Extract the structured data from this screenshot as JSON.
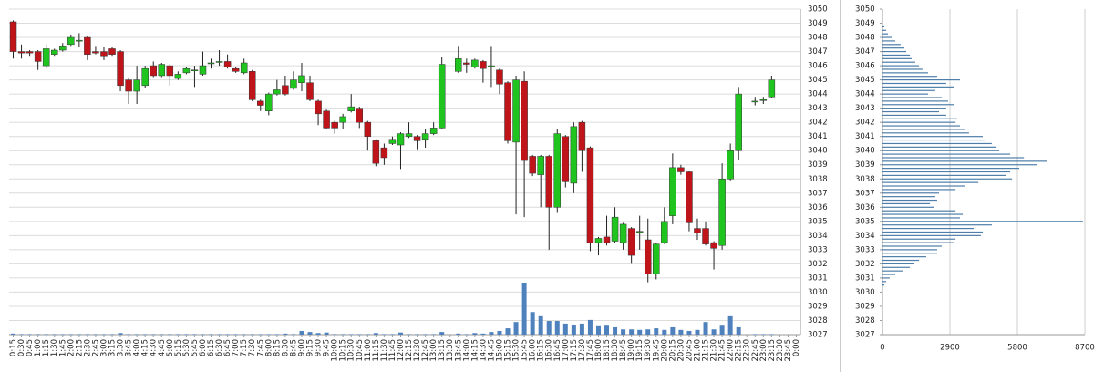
{
  "chart_data": [
    {
      "type": "candlestick",
      "categories": [
        "0:15",
        "0:30",
        "0:45",
        "1:00",
        "1:15",
        "1:30",
        "1:45",
        "2:00",
        "2:15",
        "2:30",
        "2:45",
        "3:00",
        "3:15",
        "3:30",
        "3:45",
        "4:00",
        "4:15",
        "4:30",
        "4:45",
        "5:00",
        "5:15",
        "5:30",
        "5:45",
        "6:00",
        "6:15",
        "6:30",
        "6:45",
        "7:00",
        "7:15",
        "7:30",
        "7:45",
        "8:00",
        "8:15",
        "8:30",
        "8:45",
        "9:00",
        "9:15",
        "9:30",
        "9:45",
        "10:00",
        "10:15",
        "10:30",
        "10:45",
        "11:00",
        "11:15",
        "11:30",
        "11:45",
        "12:00",
        "12:15",
        "12:30",
        "12:45",
        "13:00",
        "13:15",
        "13:30",
        "13:45",
        "14:00",
        "14:15",
        "14:30",
        "14:45",
        "15:00",
        "15:15",
        "15:30",
        "15:45",
        "16:00",
        "16:15",
        "16:30",
        "16:45",
        "17:00",
        "17:15",
        "17:30",
        "17:45",
        "18:00",
        "18:15",
        "18:30",
        "18:45",
        "19:00",
        "19:15",
        "19:30",
        "19:45",
        "20:00",
        "20:15",
        "20:30",
        "20:45",
        "21:00",
        "21:15",
        "21:30",
        "21:45",
        "22:00",
        "22:15",
        "22:30",
        "22:45",
        "23:00",
        "23:15",
        "23:30",
        "23:45",
        "0:00"
      ],
      "open": [
        3049.1,
        3047,
        3047,
        3047,
        3046,
        3046.8,
        3047.1,
        3047.5,
        3047.8,
        3048,
        3047,
        3047,
        3047.2,
        3047,
        3045,
        3044.2,
        3044.6,
        3046,
        3045.3,
        3046,
        3045.1,
        3045.5,
        3045.7,
        3045.4,
        3046.2,
        3046.3,
        3046.3,
        3045.8,
        3045.5,
        3045.6,
        3043.5,
        3042.8,
        3044,
        3044.6,
        3044.4,
        3044.8,
        3044.8,
        3043.5,
        3042.8,
        3042,
        3042,
        3042.8,
        3043,
        3042,
        3040.7,
        3040.2,
        3040.5,
        3040.4,
        3041,
        3041,
        3040.8,
        3041.2,
        3041.6,
        null,
        3045.6,
        3046.2,
        3045.9,
        3046.3,
        3046,
        3045.7,
        3044.8,
        3040.6,
        3044.9,
        3039.6,
        3038.3,
        3039.6,
        3036,
        3041,
        3037.7,
        3042,
        3040.2,
        3033.5,
        3033.9,
        3033.6,
        3033.5,
        3034.5,
        3034.3,
        3033.7,
        3031.3,
        3033.5,
        3035.4,
        3038.8,
        3038.5,
        3034.5,
        3034.5,
        3033.5,
        3033.3,
        3038,
        3040,
        null,
        3043.5,
        3043.6,
        3043.8,
        null,
        null,
        null
      ],
      "high": [
        3049.2,
        3047.5,
        3047.1,
        3047.1,
        3047.5,
        3047.2,
        3047.6,
        3048.2,
        3048.3,
        3048.1,
        3047.4,
        3047.3,
        3047.3,
        3047.1,
        3045.1,
        3046,
        3046,
        3046.3,
        3046.2,
        3046.1,
        3045.6,
        3045.9,
        3046,
        3047,
        3046.5,
        3047.1,
        3046.8,
        3045.9,
        3046.5,
        3045.7,
        3043.6,
        3044.1,
        3045,
        3045.3,
        3045.6,
        3046.2,
        3045.3,
        3043.6,
        3042.9,
        3042.1,
        3042.6,
        3044,
        3043.1,
        3042.1,
        3040.8,
        3040.5,
        3041,
        3041.3,
        3042,
        3041.1,
        3041.5,
        3042,
        3046.6,
        null,
        3047.4,
        3046.5,
        3046.5,
        3046.4,
        3047.4,
        3045.8,
        3044.9,
        3045.3,
        3045.6,
        3039.7,
        3039.7,
        3039.7,
        3041.5,
        3041.1,
        3042,
        3042.1,
        3040.3,
        3033.9,
        3035.4,
        3036,
        3034.9,
        3034.6,
        3035.4,
        3035.2,
        3033.5,
        3036,
        3039.8,
        3039,
        3038.6,
        3035.2,
        3035,
        3033.6,
        3039.1,
        3040.5,
        3044.5,
        null,
        3043.8,
        3043.8,
        3045.3,
        null,
        null,
        null
      ],
      "low": [
        3046.5,
        3046.5,
        3046.7,
        3045.7,
        3045.8,
        3046.7,
        3047,
        3047.4,
        3047.3,
        3046.4,
        3046.8,
        3046.4,
        3046.7,
        3044.2,
        3043.3,
        3043.3,
        3044.4,
        3045.2,
        3045.2,
        3044.6,
        3045,
        3045.4,
        3044.5,
        3045.3,
        3045.8,
        3046,
        3045.8,
        3045.5,
        3045.4,
        3043.5,
        3042.8,
        3042.5,
        3043.9,
        3043.9,
        3044.3,
        3044.2,
        3043.5,
        3041.8,
        3041.5,
        3041.2,
        3041.5,
        3042.7,
        3041.6,
        3040,
        3038.9,
        3039,
        3040.4,
        3038.7,
        3040.9,
        3040.1,
        3040.2,
        3041.1,
        3041.5,
        null,
        3045.5,
        3045.5,
        3045.8,
        3044.8,
        3044.5,
        3044,
        3040.5,
        3035.5,
        3035.3,
        3038.2,
        3036,
        3033,
        3035.6,
        3037.4,
        3037,
        3038.5,
        3032.9,
        3032.6,
        3033.3,
        3033.5,
        3033,
        3032,
        3033,
        3030.7,
        3030.9,
        3033.4,
        3034.8,
        3038.3,
        3034.3,
        3033.7,
        3033.3,
        3031.6,
        3033,
        3037.9,
        3039.3,
        null,
        3043.2,
        3043.3,
        3043.7,
        null,
        null,
        null
      ],
      "close": [
        3047,
        3046.9,
        3046.9,
        3046.3,
        3047.2,
        3047.1,
        3047.4,
        3048,
        3047.8,
        3046.8,
        3046.9,
        3046.7,
        3046.8,
        3044.6,
        3044.2,
        3045,
        3045.8,
        3045.3,
        3046.1,
        3045.3,
        3045.4,
        3045.8,
        3045.7,
        3046,
        3046.2,
        3046.3,
        3045.9,
        3045.6,
        3046.2,
        3043.6,
        3043.2,
        3044,
        3044.3,
        3044,
        3045,
        3045.3,
        3043.6,
        3042.6,
        3041.6,
        3041.6,
        3042.4,
        3043.1,
        3042,
        3041,
        3039.1,
        3039.5,
        3040.8,
        3041.2,
        3041.2,
        3040.7,
        3041.2,
        3041.6,
        3046.1,
        null,
        3046.5,
        3046.1,
        3046.4,
        3045.8,
        3046,
        3044.7,
        3040.7,
        3045,
        3039.3,
        3038.4,
        3039.6,
        3036,
        3041.2,
        3037.8,
        3041.7,
        3040,
        3033.5,
        3033.8,
        3033.5,
        3035.3,
        3034.8,
        3032.6,
        3034.3,
        3031.3,
        3033.4,
        3035,
        3038.8,
        3038.5,
        3034.9,
        3034.2,
        3033.4,
        3033.1,
        3038,
        3040,
        3044,
        null,
        3043.5,
        3043.6,
        3045,
        null,
        null,
        null
      ],
      "volume": [
        2,
        1,
        1,
        1,
        1,
        1,
        1,
        1,
        1,
        1,
        1,
        1,
        1,
        3,
        1,
        1,
        1,
        1,
        1,
        1,
        1,
        1,
        1,
        1,
        1,
        1,
        1,
        1,
        1,
        1,
        1,
        1,
        1,
        2,
        1,
        7,
        5,
        3,
        4,
        1,
        1,
        1,
        1,
        1,
        3,
        1,
        1,
        4,
        1,
        1,
        1,
        1,
        5,
        null,
        2,
        1,
        3,
        2,
        5,
        7,
        12,
        24,
        99,
        43,
        35,
        26,
        26,
        21,
        19,
        21,
        28,
        16,
        17,
        14,
        10,
        10,
        9,
        10,
        12,
        9,
        14,
        9,
        7,
        9,
        24,
        10,
        17,
        35,
        14,
        null,
        1,
        1,
        1,
        null,
        null,
        null
      ],
      "up_color": "#1fc41f",
      "down_color": "#c0141b",
      "volume_color": "#4f81bd",
      "ylim": [
        3027,
        3050
      ],
      "yticks": [
        3027,
        3028,
        3029,
        3030,
        3031,
        3032,
        3033,
        3034,
        3035,
        3036,
        3037,
        3038,
        3039,
        3040,
        3041,
        3042,
        3043,
        3044,
        3045,
        3046,
        3047,
        3048,
        3049,
        3050
      ],
      "y2lim": [
        0,
        620
      ],
      "grid": true
    },
    {
      "type": "hbar",
      "color": "#4e7ea9",
      "y": [
        3048.75,
        3048.5,
        3048.25,
        3048,
        3047.75,
        3047.5,
        3047.25,
        3047,
        3046.75,
        3046.5,
        3046.25,
        3046,
        3045.75,
        3045.5,
        3045.25,
        3045,
        3044.75,
        3044.5,
        3044.25,
        3044,
        3043.75,
        3043.5,
        3043.25,
        3043,
        3042.75,
        3042.5,
        3042.25,
        3042,
        3041.75,
        3041.5,
        3041.25,
        3041,
        3040.75,
        3040.5,
        3040.25,
        3040,
        3039.75,
        3039.5,
        3039.25,
        3039,
        3038.75,
        3038.5,
        3038.25,
        3038,
        3037.75,
        3037.5,
        3037.25,
        3037,
        3036.75,
        3036.5,
        3036.25,
        3036,
        3035.75,
        3035.5,
        3035.25,
        3035,
        3034.75,
        3034.5,
        3034.25,
        3034,
        3033.75,
        3033.5,
        3033.25,
        3033,
        3032.75,
        3032.5,
        3032.25,
        3032,
        3031.75,
        3031.5,
        3031.25,
        3031,
        3030.75,
        3030.5
      ],
      "values": [
        80,
        160,
        235,
        390,
        550,
        780,
        940,
        1020,
        1180,
        1250,
        1410,
        1570,
        1720,
        1960,
        2350,
        3330,
        2740,
        3060,
        2270,
        1960,
        2550,
        2820,
        3060,
        2740,
        2430,
        2740,
        3210,
        3140,
        3330,
        3530,
        3720,
        4310,
        4390,
        4700,
        4900,
        5020,
        5490,
        6080,
        7060,
        6660,
        5880,
        5490,
        5290,
        5570,
        4120,
        3530,
        3140,
        2430,
        2270,
        2350,
        2040,
        2200,
        3140,
        3450,
        3330,
        8620,
        4700,
        3920,
        4310,
        4230,
        3140,
        3060,
        2550,
        2350,
        2350,
        1880,
        1570,
        1370,
        1180,
        860,
        550,
        310,
        160,
        80
      ],
      "xlim": [
        0,
        8700
      ],
      "xticks": [
        0,
        2900,
        5800,
        8700
      ],
      "ylim": [
        3027,
        3050
      ],
      "yticks": [
        3027,
        3028,
        3029,
        3030,
        3031,
        3032,
        3033,
        3034,
        3035,
        3036,
        3037,
        3038,
        3039,
        3040,
        3041,
        3042,
        3043,
        3044,
        3045,
        3046,
        3047,
        3048,
        3049,
        3050
      ]
    }
  ]
}
